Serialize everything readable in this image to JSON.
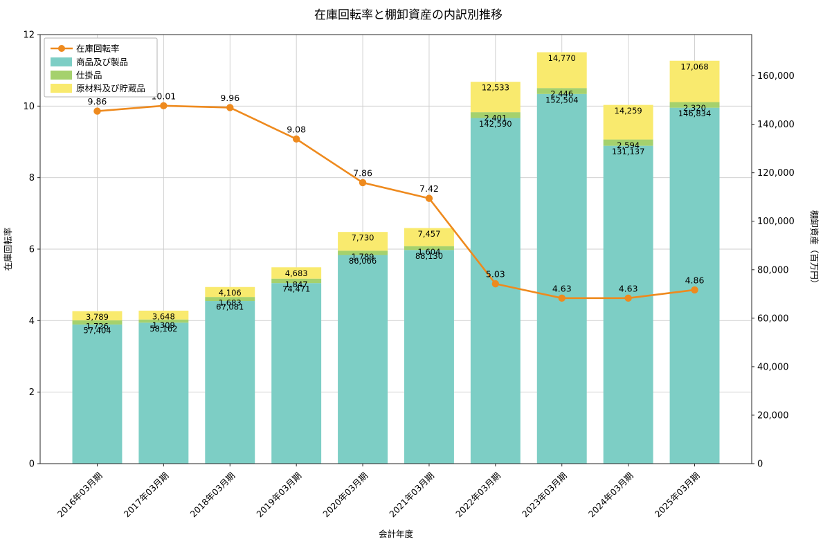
{
  "page": {
    "background": "#ffffff"
  },
  "chart_data": {
    "type": "bar",
    "stacked": true,
    "title": "在庫回転率と棚卸資産の内訳別推移",
    "xlabel": "会計年度",
    "ylabel_left": "在庫回転率",
    "ylabel_right": "棚卸資産（百万円）",
    "categories": [
      "2016年03月期",
      "2017年03月期",
      "2018年03月期",
      "2019年03月期",
      "2020年03月期",
      "2021年03月期",
      "2022年03月期",
      "2023年03月期",
      "2024年03月期",
      "2025年03月期"
    ],
    "series": [
      {
        "name": "商品及び製品",
        "color": "#7dcec5",
        "values": [
          57404,
          58162,
          67081,
          74471,
          86066,
          88130,
          142590,
          152504,
          131137,
          146834
        ]
      },
      {
        "name": "仕掛品",
        "color": "#a5d16d",
        "values": [
          1726,
          1309,
          1683,
          1847,
          1789,
          1604,
          2401,
          2446,
          2594,
          2320
        ]
      },
      {
        "name": "原材料及び貯蔵品",
        "color": "#f9ea6e",
        "values": [
          3789,
          3648,
          4106,
          4683,
          7730,
          7457,
          12533,
          14770,
          14259,
          17068
        ]
      }
    ],
    "line": {
      "name": "在庫回転率",
      "color": "#ee8a1e",
      "values": [
        9.86,
        10.01,
        9.96,
        9.08,
        7.86,
        7.42,
        5.03,
        4.63,
        4.63,
        4.86
      ]
    },
    "ylim_left": [
      0,
      12
    ],
    "yticks_left": [
      0,
      2,
      4,
      6,
      8,
      10,
      12
    ],
    "ylim_right": [
      0,
      177000
    ],
    "yticks_right": [
      0,
      20000,
      40000,
      60000,
      80000,
      100000,
      120000,
      140000,
      160000
    ],
    "grid": true,
    "legend_position": "upper left"
  }
}
